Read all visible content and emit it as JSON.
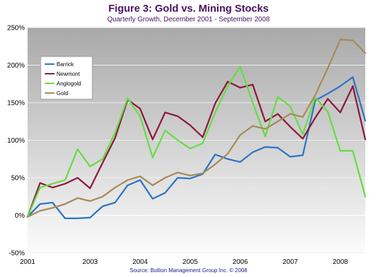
{
  "chart_data": {
    "type": "line",
    "title": "Figure 3: Gold vs. Mining Stocks",
    "subtitle": "Quarterly Growth, December 2001 - September 2008",
    "source": "Source: Bullion Management Group Inc. © 2008",
    "xlabel": "",
    "ylabel": "",
    "ylim": [
      -50,
      250
    ],
    "yticks": [
      "-50%",
      "0%",
      "50%",
      "100%",
      "150%",
      "200%",
      "250%"
    ],
    "xticks": [
      "2001",
      "2003",
      "2004",
      "2005",
      "2006",
      "2007",
      "2008"
    ],
    "grid": true,
    "legend": "top-left",
    "x_index": [
      0,
      1,
      2,
      3,
      4,
      5,
      6,
      7,
      8,
      9,
      10,
      11,
      12,
      13,
      14,
      15,
      16,
      17,
      18,
      19,
      20,
      21,
      22,
      23,
      24,
      25,
      26,
      27
    ],
    "series": [
      {
        "name": "Barrick",
        "color": "#2b75c4",
        "values": [
          -2,
          15,
          17,
          -4,
          -4,
          -3,
          12,
          17,
          40,
          47,
          22,
          30,
          50,
          49,
          55,
          81,
          75,
          71,
          84,
          91,
          90,
          78,
          80,
          153,
          162,
          172,
          184,
          126
        ]
      },
      {
        "name": "Newmont",
        "color": "#8b1a3c",
        "values": [
          -2,
          43,
          37,
          42,
          50,
          36,
          70,
          103,
          154,
          142,
          101,
          137,
          132,
          120,
          104,
          149,
          178,
          170,
          174,
          125,
          135,
          118,
          102,
          130,
          155,
          137,
          172,
          101
        ]
      },
      {
        "name": "Anglogold",
        "color": "#66dd44",
        "values": [
          -2,
          37,
          42,
          47,
          88,
          65,
          75,
          110,
          156,
          132,
          77,
          113,
          100,
          89,
          96,
          137,
          172,
          198,
          150,
          105,
          158,
          145,
          108,
          157,
          138,
          86,
          86,
          25
        ]
      },
      {
        "name": "Gold",
        "color": "#a98a5a",
        "values": [
          -2,
          6,
          10,
          15,
          23,
          19,
          25,
          37,
          47,
          52,
          40,
          50,
          57,
          53,
          56,
          68,
          82,
          107,
          119,
          115,
          125,
          135,
          131,
          160,
          196,
          234,
          233,
          216
        ]
      }
    ]
  }
}
